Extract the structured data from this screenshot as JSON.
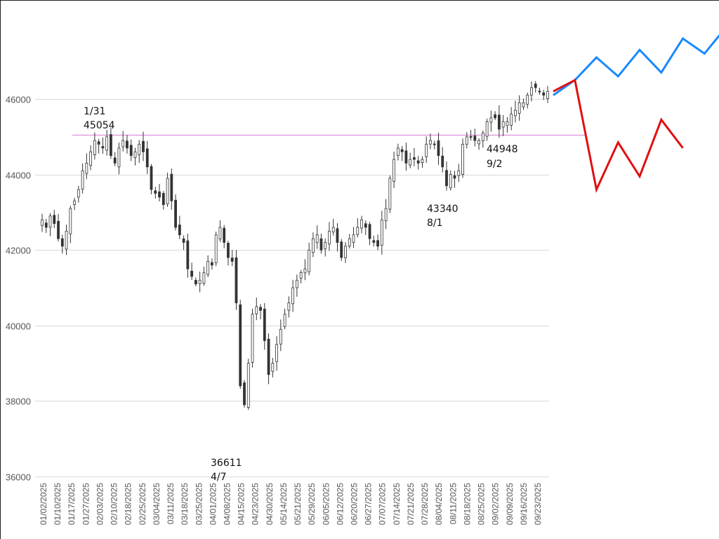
{
  "chart_data": {
    "type": "candlestick",
    "title": "",
    "xlabel": "",
    "ylabel": "",
    "ylim": [
      36000,
      47900
    ],
    "yticks": [
      36000,
      38000,
      40000,
      42000,
      44000,
      46000
    ],
    "grid": true,
    "legend": "none",
    "x_tick_labels": [
      "01/02/2025",
      "01/10/2025",
      "01/17/2025",
      "01/27/2025",
      "02/03/2025",
      "02/10/2025",
      "02/18/2025",
      "02/25/2025",
      "03/04/2025",
      "03/11/2025",
      "03/18/2025",
      "03/25/2025",
      "04/01/2025",
      "04/08/2025",
      "04/15/2025",
      "04/23/2025",
      "04/30/2025",
      "05/14/2025",
      "05/21/2025",
      "05/29/2025",
      "06/05/2025",
      "06/12/2025",
      "06/20/2025",
      "06/27/2025",
      "07/07/2025",
      "07/14/2025",
      "07/21/2025",
      "07/28/2025",
      "08/04/2025",
      "08/11/2025",
      "08/18/2025",
      "08/25/2025",
      "09/02/2025",
      "09/09/2025",
      "09/16/2025",
      "09/23/2025"
    ],
    "candles_close": [
      42800,
      42600,
      42900,
      42700,
      42300,
      42100,
      42500,
      43100,
      43300,
      43600,
      44100,
      44300,
      44600,
      44900,
      44800,
      44700,
      45000,
      44500,
      44300,
      44700,
      44900,
      44700,
      44500,
      44600,
      44800,
      44600,
      44200,
      43600,
      43500,
      43400,
      43200,
      43900,
      43300,
      42600,
      42400,
      42200,
      41500,
      41300,
      41100,
      41200,
      41400,
      41700,
      41600,
      42400,
      42600,
      42200,
      41800,
      41700,
      40600,
      38400,
      37900,
      39000,
      40300,
      40500,
      40400,
      39600,
      38700,
      39000,
      39500,
      39900,
      40300,
      40600,
      41000,
      41200,
      41400,
      41500,
      42000,
      42300,
      42400,
      42000,
      42200,
      42500,
      42600,
      42200,
      41800,
      42100,
      42300,
      42400,
      42600,
      42800,
      42600,
      42300,
      42200,
      42100,
      42800,
      43100,
      43900,
      44400,
      44700,
      44600,
      44300,
      44400,
      44400,
      44300,
      44400,
      44800,
      44900,
      44800,
      44500,
      44200,
      43700,
      44000,
      43900,
      44100,
      44800,
      45000,
      45000,
      44900,
      44900,
      45100,
      45400,
      45500,
      45500,
      45200,
      45400,
      45400,
      45600,
      45700,
      45900,
      45900,
      46100,
      46300,
      46300,
      46200,
      46100,
      46200
    ],
    "reference_line": {
      "value": 45054,
      "color": "#d87ad8"
    },
    "annotations": [
      {
        "label": "1/31",
        "value": "45054"
      },
      {
        "label": "4/7",
        "value": "36611"
      },
      {
        "label": "8/1",
        "value": "43340"
      },
      {
        "label": "9/2",
        "value": "44948"
      }
    ],
    "projection_series": [
      {
        "name": "",
        "color": "#1a88ff",
        "values": [
          46100,
          46500,
          47100,
          46600,
          47300,
          46700,
          47600,
          47200,
          47900
        ]
      },
      {
        "name": "",
        "color": "#e01010",
        "values": [
          46200,
          46500,
          43600,
          44850,
          43950,
          45450,
          44700
        ]
      }
    ]
  }
}
